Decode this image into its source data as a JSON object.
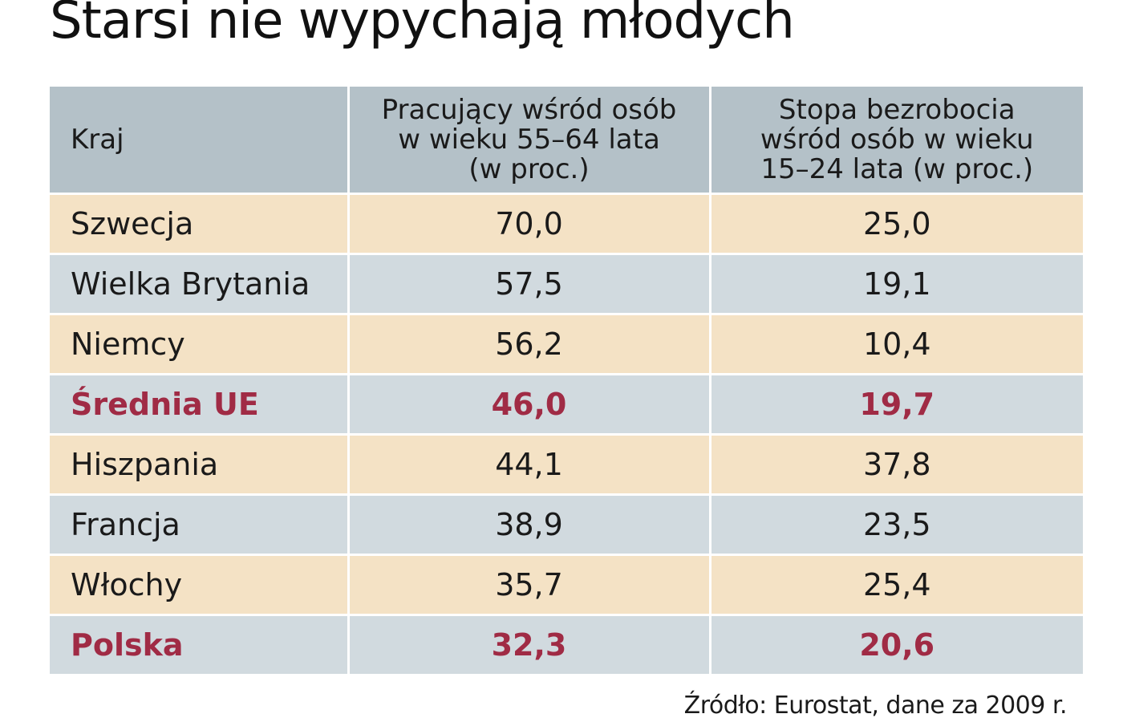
{
  "title": "Starsi nie wypychają młodych",
  "source": "Źródło: Eurostat, dane za 2009 r.",
  "colors": {
    "header_bg": "#b4c1c8",
    "row_odd_bg": "#f4e2c5",
    "row_even_bg": "#d1dadf",
    "highlight_text": "#a02b45"
  },
  "chart_data": {
    "type": "table",
    "title": "Starsi nie wypychają młodych",
    "columns": [
      "Kraj",
      "Pracujący wśród osób w wieku 55–64 lata (w proc.)",
      "Stopa bezrobocia wśród osób w wieku 15–24 lata (w proc.)"
    ],
    "column_header_lines": [
      [
        "Kraj"
      ],
      [
        "Pracujący wśród osób",
        "w wieku 55–64 lata",
        "(w proc.)"
      ],
      [
        "Stopa bezrobocia",
        "wśród osób w wieku",
        "15–24 lata (w proc.)"
      ]
    ],
    "rows": [
      {
        "country": "Szwecja",
        "employed_55_64": "70,0",
        "unemployment_15_24": "25,0",
        "highlight": false
      },
      {
        "country": "Wielka Brytania",
        "employed_55_64": "57,5",
        "unemployment_15_24": "19,1",
        "highlight": false
      },
      {
        "country": "Niemcy",
        "employed_55_64": "56,2",
        "unemployment_15_24": "10,4",
        "highlight": false
      },
      {
        "country": "Średnia UE",
        "employed_55_64": "46,0",
        "unemployment_15_24": "19,7",
        "highlight": true
      },
      {
        "country": "Hiszpania",
        "employed_55_64": "44,1",
        "unemployment_15_24": "37,8",
        "highlight": false
      },
      {
        "country": "Francja",
        "employed_55_64": "38,9",
        "unemployment_15_24": "23,5",
        "highlight": false
      },
      {
        "country": "Włochy",
        "employed_55_64": "35,7",
        "unemployment_15_24": "25,4",
        "highlight": false
      },
      {
        "country": "Polska",
        "employed_55_64": "32,3",
        "unemployment_15_24": "20,6",
        "highlight": true
      }
    ],
    "source": "Źródło: Eurostat, dane za 2009 r."
  }
}
